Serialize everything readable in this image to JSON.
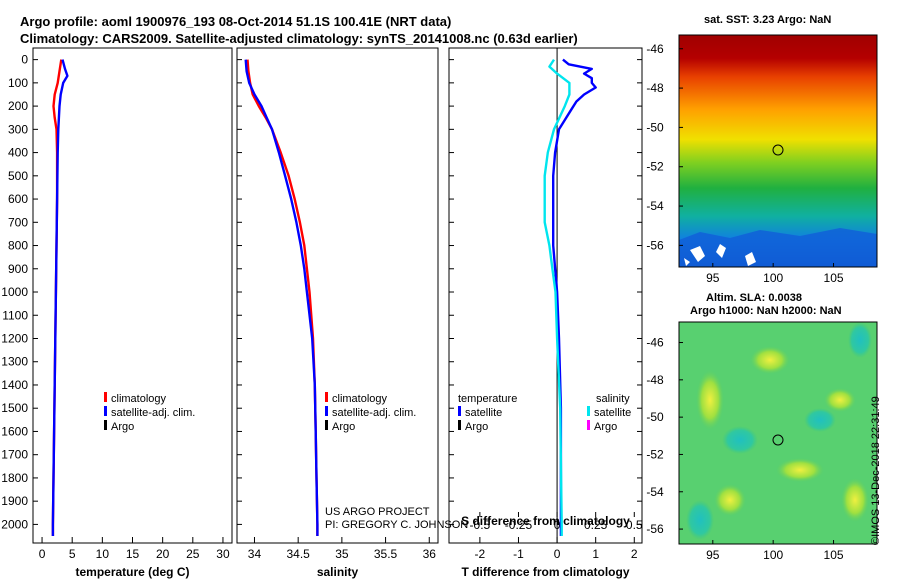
{
  "header": {
    "line1": "Argo profile: aoml 1900976_193 08-Oct-2014 51.1S 100.41E (NRT data)",
    "line2": "Climatology: CARS2009. Satellite-adjusted climatology: synTS_20141008.nc (0.63d earlier)"
  },
  "colors": {
    "climatology": "#ff0000",
    "satellite": "#0000ff",
    "argo": "#000000",
    "t_satellite": "#0000ff",
    "s_satellite": "#00e5ee",
    "s_argo": "#ff00ff"
  },
  "legend_profile": {
    "climatology": "climatology",
    "satellite": "satellite-adj. clim.",
    "argo": "Argo"
  },
  "legend_diff": {
    "temperature_title": "temperature",
    "salinity_title": "salinity",
    "t_satellite": "satellite",
    "t_argo": "Argo",
    "s_satellite": "satellite",
    "s_argo": "Argo"
  },
  "credits": {
    "project": "US ARGO PROJECT",
    "pi": "PI: GREGORY C. JOHNSON",
    "imos": "©IMOS 13-Dec-2018 22:31:49"
  },
  "sst_map": {
    "title": "sat. SST: 3.23 Argo: NaN",
    "lon_ticks": [
      "95",
      "100",
      "105"
    ],
    "lat_ticks": [
      "-46",
      "-48",
      "-50",
      "-52",
      "-54",
      "-56"
    ]
  },
  "sla_map": {
    "title1": "Altim. SLA: 0.0038",
    "title2": "Argo h1000: NaN h2000: NaN",
    "lon_ticks": [
      "95",
      "100",
      "105"
    ],
    "lat_ticks": [
      "-46",
      "-48",
      "-50",
      "-52",
      "-54",
      "-56"
    ]
  },
  "chart_data": [
    {
      "type": "line",
      "title": "temperature",
      "xlabel": "temperature (deg C)",
      "ylabel": "",
      "xlim": [
        -1.5,
        31.5
      ],
      "ylim": [
        2080,
        -50
      ],
      "x_ticks": [
        0,
        5,
        10,
        15,
        20,
        25,
        30
      ],
      "x_tick_labels": [
        "0",
        "5",
        "10",
        "15",
        "20",
        "25",
        "30"
      ],
      "y_ticks": [
        0,
        100,
        200,
        300,
        400,
        500,
        600,
        700,
        800,
        900,
        1000,
        1100,
        1200,
        1300,
        1400,
        1500,
        1600,
        1700,
        1800,
        1900,
        2000
      ],
      "series": [
        {
          "name": "climatology",
          "color": "#ff0000",
          "depth": [
            0,
            50,
            100,
            150,
            200,
            250,
            300,
            400,
            600,
            800,
            1000,
            1200,
            1400,
            1600,
            1800,
            2000,
            2050
          ],
          "values": [
            3.2,
            2.9,
            2.6,
            2.1,
            1.9,
            2.1,
            2.4,
            2.5,
            2.5,
            2.4,
            2.3,
            2.2,
            2.1,
            2.0,
            1.9,
            1.8,
            1.8
          ]
        },
        {
          "name": "satellite-adj. clim.",
          "color": "#0000ff",
          "depth": [
            0,
            40,
            70,
            100,
            150,
            200,
            250,
            300,
            400,
            600,
            800,
            1000,
            1200,
            1400,
            1600,
            1800,
            2000,
            2050
          ],
          "values": [
            3.4,
            3.8,
            4.2,
            3.5,
            3.1,
            2.9,
            2.8,
            2.7,
            2.6,
            2.5,
            2.4,
            2.3,
            2.2,
            2.1,
            2.0,
            1.9,
            1.8,
            1.8
          ]
        }
      ]
    },
    {
      "type": "line",
      "title": "salinity",
      "xlabel": "salinity",
      "ylabel": "",
      "xlim": [
        33.8,
        36.1
      ],
      "ylim": [
        2080,
        -50
      ],
      "x_ticks": [
        34,
        34.5,
        35,
        35.5,
        36
      ],
      "x_tick_labels": [
        "34",
        "34.5",
        "35",
        "35.5",
        "36"
      ],
      "series": [
        {
          "name": "climatology",
          "color": "#ff0000",
          "depth": [
            0,
            50,
            100,
            150,
            200,
            250,
            300,
            400,
            500,
            600,
            700,
            800,
            900,
            1000,
            1200,
            1400,
            1600,
            1800,
            2000,
            2050
          ],
          "values": [
            33.92,
            33.93,
            33.95,
            33.98,
            34.05,
            34.13,
            34.2,
            34.3,
            34.39,
            34.46,
            34.52,
            34.57,
            34.6,
            34.63,
            34.67,
            34.69,
            34.7,
            34.71,
            34.72,
            34.72
          ]
        },
        {
          "name": "satellite-adj. clim.",
          "color": "#0000ff",
          "depth": [
            0,
            50,
            100,
            150,
            200,
            250,
            300,
            400,
            500,
            600,
            700,
            800,
            900,
            1000,
            1200,
            1400,
            1600,
            1800,
            2000,
            2050
          ],
          "values": [
            33.9,
            33.91,
            33.94,
            34.0,
            34.08,
            34.14,
            34.2,
            34.28,
            34.35,
            34.42,
            34.48,
            34.53,
            34.57,
            34.6,
            34.66,
            34.69,
            34.7,
            34.71,
            34.72,
            34.72
          ]
        }
      ]
    },
    {
      "type": "line",
      "title": "difference from climatology",
      "xlabel": "T difference from climatology",
      "top_xlabel": "S difference from climatology",
      "ylabel": "",
      "xlim": [
        -2.8,
        2.2
      ],
      "ylim": [
        2080,
        -50
      ],
      "x_ticks": [
        -2,
        -1,
        0,
        1,
        2
      ],
      "x_tick_labels": [
        "-2",
        "-1",
        "0",
        "1",
        "2"
      ],
      "s_ticks": [
        -0.5,
        -0.25,
        0,
        0.25,
        0.5
      ],
      "s_tick_labels": [
        "-0.5",
        "-0.25",
        "0",
        "0.25",
        "0.5"
      ],
      "s_scale_per_T_unit": 0.25,
      "series": [
        {
          "name": "temperature satellite",
          "color": "#0000ff",
          "depth": [
            0,
            20,
            40,
            60,
            80,
            100,
            120,
            150,
            180,
            220,
            260,
            300,
            400,
            500,
            600,
            700,
            800,
            1000,
            1200,
            1500,
            2000,
            2050
          ],
          "values": [
            0.15,
            0.3,
            0.9,
            0.7,
            0.9,
            0.9,
            1.0,
            0.7,
            0.5,
            0.35,
            0.2,
            0.05,
            -0.05,
            -0.1,
            -0.1,
            -0.1,
            -0.1,
            0.0,
            0.05,
            0.1,
            0.1,
            0.1
          ]
        },
        {
          "name": "salinity satellite",
          "color": "#00e5ee",
          "depth": [
            0,
            30,
            60,
            100,
            150,
            200,
            300,
            400,
            500,
            600,
            700,
            800,
            900,
            1000,
            1200,
            1500,
            2000,
            2050
          ],
          "values": [
            -0.02,
            -0.05,
            0.0,
            0.08,
            0.08,
            0.05,
            -0.02,
            -0.06,
            -0.08,
            -0.08,
            -0.08,
            -0.05,
            -0.03,
            -0.01,
            0.0,
            0.02,
            0.03,
            0.03
          ]
        }
      ]
    }
  ]
}
